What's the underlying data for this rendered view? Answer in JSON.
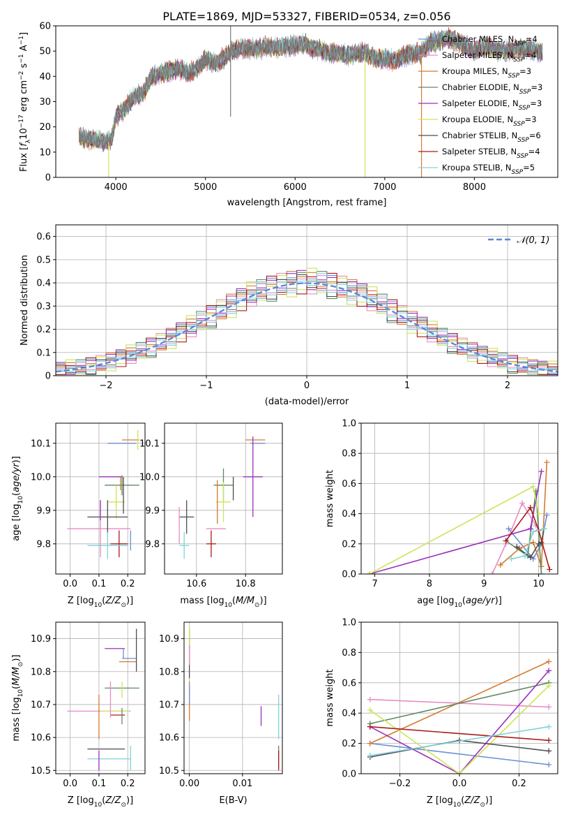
{
  "title": "PLATE=1869, MJD=53327, FIBERID=0534, z=0.056",
  "colors": [
    "#6b8fd6",
    "#e68cc2",
    "#d67a2e",
    "#5e8a62",
    "#9b30b8",
    "#cfe35a",
    "#4d4d4d",
    "#aa1a1a",
    "#7fd3da"
  ],
  "legend_spectrum": [
    "Chabrier MILES, N_SSP=4",
    "Salpeter MILES, N_SSP=4",
    "Kroupa MILES, N_SSP=3",
    "Chabrier ELODIE, N_SSP=3",
    "Salpeter ELODIE, N_SSP=3",
    "Kroupa ELODIE, N_SSP=3",
    "Chabrier STELIB, N_SSP=6",
    "Salpeter STELIB, N_SSP=4",
    "Kroupa STELIB, N_SSP=5"
  ],
  "legend_normal": "𝒩(0, 1)",
  "chart_data": [
    {
      "id": "spectrum",
      "type": "line",
      "xlabel": "wavelength [Angstrom, rest frame]",
      "ylabel": "Flux [f_λ10^-17 erg cm^-2 s^-1 A^-1]",
      "xlim": [
        3330,
        8930
      ],
      "ylim": [
        0,
        60
      ],
      "xticks": [
        4000,
        5000,
        6000,
        7000,
        8000
      ],
      "yticks": [
        0,
        10,
        20,
        30,
        40,
        50,
        60
      ],
      "continuum": {
        "x": [
          3590,
          3700,
          3800,
          3900,
          3950,
          4000,
          4100,
          4200,
          4300,
          4400,
          4500,
          4600,
          4700,
          4800,
          4900,
          5000,
          5100,
          5200,
          5300,
          5400,
          5500,
          5600,
          5700,
          5800,
          5900,
          6000,
          6100,
          6200,
          6300,
          6400,
          6500,
          6600,
          6700,
          6800,
          6900,
          7000,
          7100,
          7200,
          7300,
          7400,
          7500,
          7600,
          7700,
          7800,
          7900,
          8000,
          8100,
          8200,
          8300,
          8400,
          8500,
          8600,
          8700,
          8760
        ],
        "y": [
          16,
          15,
          15,
          14,
          14,
          24,
          27,
          32,
          33,
          40,
          41,
          42,
          43,
          41,
          43,
          47,
          45,
          47,
          50,
          51,
          51,
          51,
          52,
          51,
          52,
          52,
          53,
          51,
          50,
          49,
          49,
          48,
          49,
          49,
          47,
          47,
          46,
          48,
          49,
          49,
          53,
          54,
          55,
          54,
          52,
          50,
          52,
          51,
          50,
          50,
          51,
          51,
          50,
          49
        ]
      },
      "spikes": [
        {
          "x": 3920,
          "y": 0
        },
        {
          "x": 5280,
          "y": 60
        },
        {
          "x": 5280,
          "y": 24
        },
        {
          "x": 6780,
          "y": 0
        },
        {
          "x": 7410,
          "y": 0
        }
      ]
    },
    {
      "id": "residuals",
      "type": "histogram",
      "xlabel": "(data-model)/error",
      "ylabel": "Normed distribution",
      "xlim": [
        -2.5,
        2.5
      ],
      "ylim": [
        0,
        0.65
      ],
      "xticks": [
        -2,
        -1,
        0,
        1,
        2
      ],
      "xticklabels": [
        "−2",
        "−1",
        "0",
        "1",
        "2"
      ],
      "yticks": [
        0.0,
        0.1,
        0.2,
        0.3,
        0.4,
        0.5,
        0.6
      ],
      "bins": {
        "start": -2.5,
        "width": 0.1,
        "count": 50
      },
      "series_mod": [
        [
          0,
          0.02,
          0.03,
          0.05,
          0.06,
          -0.03,
          0.04,
          -0.05,
          0.01
        ],
        [
          0.02,
          -0.05,
          0.05,
          0.01,
          -0.03,
          0.07,
          -0.02,
          0.03,
          -0.01
        ],
        [
          -0.03,
          0.04,
          -0.01,
          0.06,
          0.02,
          -0.04,
          0.01,
          -0.02,
          0.05
        ],
        [
          0.05,
          -0.02,
          0.02,
          -0.06,
          0.04,
          0.01,
          -0.05,
          0.06,
          -0.03
        ],
        [
          -0.02,
          0.06,
          -0.04,
          0.03,
          -0.01,
          0.05,
          0.03,
          -0.03,
          0.02
        ],
        [
          0.03,
          -0.03,
          0.06,
          -0.02,
          0.05,
          -0.06,
          0.02,
          0.01,
          -0.04
        ]
      ],
      "normal": {
        "mu": 0,
        "sigma": 1
      }
    },
    {
      "id": "age_vs_Z",
      "type": "errorbar",
      "xlabel": "Z [log10(Z/Z⊙)]",
      "ylabel": "age  [log10(age/yr)]",
      "xlim": [
        -0.05,
        0.26
      ],
      "ylim": [
        9.71,
        10.16
      ],
      "xticks": [
        0.0,
        0.1,
        0.2
      ],
      "xticklabels": [
        "0.0",
        "0.1",
        "0.2"
      ],
      "yticks": [
        9.8,
        9.9,
        10.0,
        10.1
      ],
      "yticklabels": [
        "9.8",
        "9.9",
        "10.0",
        "10.1"
      ],
      "points": [
        {
          "x": 0.18,
          "xerr": 0.05,
          "y": 10.1,
          "yerr": 0.0
        },
        {
          "x": 0.1,
          "xerr": 0.11,
          "y": 9.845,
          "yerr": 0.0
        },
        {
          "x": 0.21,
          "xerr": 0.03,
          "y": 10.11,
          "yerr": 0.0
        },
        {
          "x": 0.18,
          "xerr": 0.06,
          "y": 9.975,
          "yerr": 0.03
        },
        {
          "x": 0.14,
          "xerr": 0.04,
          "y": 10.0,
          "yerr": 0.0
        },
        {
          "x": 0.16,
          "xerr": 0.03,
          "y": 9.925,
          "yerr": 0.05
        },
        {
          "x": 0.13,
          "xerr": 0.07,
          "y": 9.88,
          "yerr": 0.05
        },
        {
          "x": 0.17,
          "xerr": 0.03,
          "y": 9.8,
          "yerr": 0.04
        },
        {
          "x": 0.13,
          "xerr": 0.07,
          "y": 9.795,
          "yerr": 0.04
        }
      ],
      "vlines": [
        {
          "x": 0.175,
          "y0": 9.96,
          "y1": 10.0
        },
        {
          "x": 0.185,
          "y0": 9.89,
          "y1": 10.0
        },
        {
          "x": 0.105,
          "y0": 9.76,
          "y1": 9.93
        },
        {
          "x": 0.235,
          "y0": 10.08,
          "y1": 10.14
        },
        {
          "x": 0.21,
          "y0": 9.78,
          "y1": 9.84
        },
        {
          "x": 0.105,
          "y0": 9.87,
          "y1": 9.93
        }
      ]
    },
    {
      "id": "age_vs_mass",
      "type": "errorbar",
      "xlabel": "mass [log10(M/M⊙)]",
      "ylabel": "",
      "xlim": [
        10.47,
        10.95
      ],
      "ylim": [
        9.71,
        10.16
      ],
      "xticks": [
        10.6,
        10.8
      ],
      "xticklabels": [
        "10.6",
        "10.8"
      ],
      "yticks": [
        9.8,
        9.9,
        10.0,
        10.1
      ],
      "yticklabels": [
        "9.8",
        "9.9",
        "10.0",
        "10.1"
      ],
      "points": [
        {
          "x": 10.85,
          "xerr": 0.03,
          "y": 10.1,
          "yerr": 0.0
        },
        {
          "x": 10.68,
          "xerr": 0.04,
          "y": 9.845,
          "yerr": 0.0
        },
        {
          "x": 10.84,
          "xerr": 0.04,
          "y": 10.11,
          "yerr": 0.0
        },
        {
          "x": 10.71,
          "xerr": 0.04,
          "y": 9.975,
          "yerr": 0.05
        },
        {
          "x": 10.83,
          "xerr": 0.04,
          "y": 10.0,
          "yerr": 0.12
        },
        {
          "x": 10.71,
          "xerr": 0.03,
          "y": 9.925,
          "yerr": 0.06
        },
        {
          "x": 10.56,
          "xerr": 0.03,
          "y": 9.88,
          "yerr": 0.05
        },
        {
          "x": 10.66,
          "xerr": 0.02,
          "y": 9.8,
          "yerr": 0.04
        },
        {
          "x": 10.55,
          "xerr": 0.02,
          "y": 9.795,
          "yerr": 0.04
        }
      ],
      "vlines": [
        {
          "x": 10.685,
          "y0": 9.86,
          "y1": 9.99
        },
        {
          "x": 10.75,
          "y0": 9.93,
          "y1": 10.0
        },
        {
          "x": 10.53,
          "y0": 9.8,
          "y1": 9.91
        }
      ]
    },
    {
      "id": "mass_weight_vs_age",
      "type": "line",
      "xlabel": "age  [log10(age/yr)]",
      "ylabel": "mass weight",
      "xlim": [
        6.75,
        10.35
      ],
      "ylim": [
        0,
        1
      ],
      "xticks": [
        7,
        8,
        9,
        10
      ],
      "xticklabels": [
        "7",
        "8",
        "9",
        "10"
      ],
      "yticks": [
        0,
        0.2,
        0.4,
        0.6,
        0.8,
        1.0
      ],
      "yticklabels": [
        "0.0",
        "0.2",
        "0.4",
        "0.6",
        "0.8",
        "1.0"
      ],
      "series": [
        {
          "x": [
            9.45,
            9.9,
            10.05,
            10.15
          ],
          "y": [
            0.3,
            0.1,
            0.2,
            0.39
          ]
        },
        {
          "x": [
            9.15,
            9.4,
            9.7,
            9.95
          ],
          "y": [
            0.0,
            0.2,
            0.47,
            0.32
          ]
        },
        {
          "x": [
            9.3,
            9.65,
            9.9,
            10.05,
            10.15
          ],
          "y": [
            0.06,
            0.17,
            0.21,
            0.05,
            0.74
          ]
        },
        {
          "x": [
            9.4,
            9.8,
            9.95,
            10.05
          ],
          "y": [
            0.22,
            0.12,
            0.55,
            0.0
          ]
        },
        {
          "x": [
            6.9,
            9.85,
            10.05
          ],
          "y": [
            0.0,
            0.3,
            0.68
          ]
        },
        {
          "x": [
            6.9,
            9.9,
            10.0
          ],
          "y": [
            0.0,
            0.58,
            0.4
          ]
        },
        {
          "x": [
            9.6,
            9.85,
            10.0,
            10.05,
            10.1
          ],
          "y": [
            0.18,
            0.11,
            0.2,
            0.21,
            0.3
          ]
        },
        {
          "x": [
            9.4,
            9.85,
            10.0,
            10.2
          ],
          "y": [
            0.22,
            0.44,
            0.29,
            0.03
          ]
        },
        {
          "x": [
            9.5,
            9.75,
            9.9,
            10.1
          ],
          "y": [
            0.1,
            0.12,
            0.28,
            0.3
          ]
        }
      ]
    },
    {
      "id": "mass_vs_Z",
      "type": "errorbar",
      "xlabel": "Z [log10(Z/Z⊙)]",
      "ylabel": "mass [log10(M/M⊙)]",
      "xlim": [
        -0.05,
        0.26
      ],
      "ylim": [
        10.49,
        10.95
      ],
      "xticks": [
        0.0,
        0.1,
        0.2
      ],
      "xticklabels": [
        "0.0",
        "0.1",
        "0.2"
      ],
      "yticks": [
        10.5,
        10.6,
        10.7,
        10.8,
        10.9
      ],
      "yticklabels": [
        "10.5",
        "10.6",
        "10.7",
        "10.8",
        "10.9"
      ],
      "points": [
        {
          "x": 0.205,
          "xerr": 0.025,
          "y": 10.84,
          "yerr": 0.0
        },
        {
          "x": 0.1,
          "xerr": 0.11,
          "y": 10.68,
          "yerr": 0.0
        },
        {
          "x": 0.2,
          "xerr": 0.03,
          "y": 10.83,
          "yerr": 0.0
        },
        {
          "x": 0.18,
          "xerr": 0.06,
          "y": 10.75,
          "yerr": 0.0
        },
        {
          "x": 0.155,
          "xerr": 0.035,
          "y": 10.87,
          "yerr": 0.0
        },
        {
          "x": 0.155,
          "xerr": 0.05,
          "y": 10.68,
          "yerr": 0.0
        },
        {
          "x": 0.125,
          "xerr": 0.065,
          "y": 10.565,
          "yerr": 0.0
        },
        {
          "x": 0.165,
          "xerr": 0.025,
          "y": 10.668,
          "yerr": 0.0
        },
        {
          "x": 0.135,
          "xerr": 0.075,
          "y": 10.535,
          "yerr": 0.0
        }
      ],
      "vlines": [
        {
          "x": 0.1,
          "y0": 10.595,
          "y1": 10.73
        },
        {
          "x": 0.23,
          "y0": 10.8,
          "y1": 10.93
        },
        {
          "x": 0.14,
          "y0": 10.66,
          "y1": 10.77
        },
        {
          "x": 0.18,
          "y0": 10.72,
          "y1": 10.77
        },
        {
          "x": 0.185,
          "y0": 10.84,
          "y1": 10.87
        },
        {
          "x": 0.1,
          "y0": 10.5,
          "y1": 10.56
        },
        {
          "x": 0.21,
          "y0": 10.5,
          "y1": 10.575
        },
        {
          "x": 0.18,
          "y0": 10.64,
          "y1": 10.69
        }
      ]
    },
    {
      "id": "mass_vs_ebv",
      "type": "errorbar",
      "xlabel": "E(B-V)",
      "ylabel": "",
      "xlim": [
        -0.001,
        0.0175
      ],
      "ylim": [
        10.49,
        10.95
      ],
      "xticks": [
        0.0,
        0.01
      ],
      "xticklabels": [
        "0.00",
        "0.01"
      ],
      "yticks": [
        10.5,
        10.6,
        10.7,
        10.8,
        10.9
      ],
      "yticklabels": [
        "10.5",
        "10.6",
        "10.7",
        "10.8",
        "10.9"
      ],
      "vlines": [
        {
          "x": 0.0,
          "y0": 10.65,
          "y1": 10.77
        },
        {
          "x": 0.0,
          "y0": 10.78,
          "y1": 10.93
        },
        {
          "x": 0.0,
          "y0": 10.82,
          "y1": 10.9
        },
        {
          "x": 0.0,
          "y0": 10.88,
          "y1": 10.935
        },
        {
          "x": 0.0,
          "y0": 10.7,
          "y1": 10.76
        },
        {
          "x": 0.0135,
          "y0": 10.635,
          "y1": 10.695
        },
        {
          "x": 0.0168,
          "y0": 10.595,
          "y1": 10.73
        },
        {
          "x": 0.0168,
          "y0": 10.51,
          "y1": 10.575
        },
        {
          "x": 0.0168,
          "y0": 10.5,
          "y1": 10.56
        }
      ]
    },
    {
      "id": "mass_weight_vs_Z",
      "type": "line",
      "xlabel": "Z [log10(Z/Z⊙)]",
      "ylabel": "mass weight",
      "xlim": [
        -0.33,
        0.33
      ],
      "ylim": [
        0,
        1
      ],
      "xticks": [
        -0.2,
        0.0,
        0.2
      ],
      "xticklabels": [
        "−0.2",
        "0.0",
        "0.2"
      ],
      "yticks": [
        0,
        0.2,
        0.4,
        0.6,
        0.8,
        1.0
      ],
      "yticklabels": [
        "0.0",
        "0.2",
        "0.4",
        "0.6",
        "0.8",
        "1.0"
      ],
      "series": [
        {
          "x": [
            -0.3,
            0.3
          ],
          "y": [
            0.2,
            0.06
          ]
        },
        {
          "x": [
            -0.3,
            0.3
          ],
          "y": [
            0.49,
            0.44
          ]
        },
        {
          "x": [
            -0.3,
            0.3
          ],
          "y": [
            0.2,
            0.74
          ]
        },
        {
          "x": [
            -0.3,
            0.3
          ],
          "y": [
            0.33,
            0.6
          ]
        },
        {
          "x": [
            -0.3,
            0.0,
            0.3
          ],
          "y": [
            0.31,
            0.0,
            0.68
          ]
        },
        {
          "x": [
            -0.3,
            0.0,
            0.3
          ],
          "y": [
            0.42,
            0.0,
            0.58
          ]
        },
        {
          "x": [
            -0.3,
            0.0,
            0.3
          ],
          "y": [
            0.11,
            0.22,
            0.15
          ]
        },
        {
          "x": [
            -0.3,
            0.3
          ],
          "y": [
            0.31,
            0.22
          ]
        },
        {
          "x": [
            -0.3,
            0.3
          ],
          "y": [
            0.12,
            0.31
          ]
        }
      ]
    }
  ]
}
